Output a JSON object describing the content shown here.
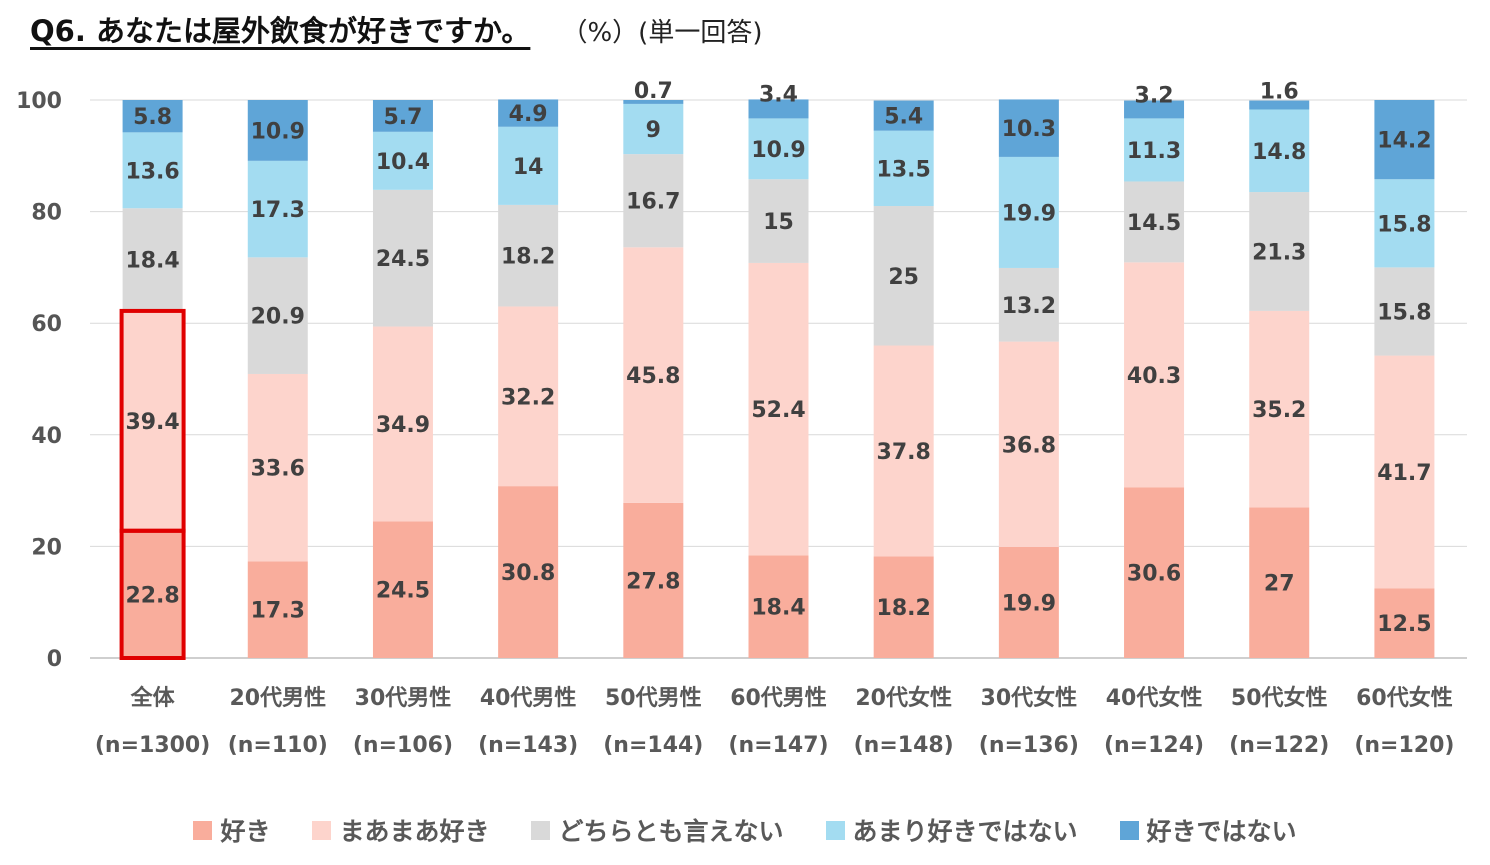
{
  "title": "Q6. あなたは屋外飲食が好きですか。",
  "title_note": "（%）(単一回答)",
  "chart_data": {
    "type": "bar",
    "stacked": true,
    "orientation": "vertical",
    "ylim": [
      0,
      100
    ],
    "yticks": [
      "0",
      "20",
      "40",
      "60",
      "80",
      "100"
    ],
    "grid": true,
    "categories": [
      "全体",
      "20代男性",
      "30代男性",
      "40代男性",
      "50代男性",
      "60代男性",
      "20代女性",
      "30代女性",
      "40代女性",
      "50代女性",
      "60代女性"
    ],
    "sample_sizes": [
      "(n=1300)",
      "(n=110)",
      "(n=106)",
      "(n=143)",
      "(n=144)",
      "(n=147)",
      "(n=148)",
      "(n=136)",
      "(n=124)",
      "(n=122)",
      "(n=120)"
    ],
    "series": [
      {
        "name": "好き",
        "color": "#f9ad9c",
        "values": [
          22.8,
          17.3,
          24.5,
          30.8,
          27.8,
          18.4,
          18.2,
          19.9,
          30.6,
          27,
          12.5
        ],
        "labels": [
          "22.8",
          "17.3",
          "24.5",
          "30.8",
          "27.8",
          "18.4",
          "18.2",
          "19.9",
          "30.6",
          "27",
          "12.5"
        ]
      },
      {
        "name": "まあまあ好き",
        "color": "#fdd4cc",
        "values": [
          39.4,
          33.6,
          34.9,
          32.2,
          45.8,
          52.4,
          37.8,
          36.8,
          40.3,
          35.2,
          41.7
        ],
        "labels": [
          "39.4",
          "33.6",
          "34.9",
          "32.2",
          "45.8",
          "52.4",
          "37.8",
          "36.8",
          "40.3",
          "35.2",
          "41.7"
        ]
      },
      {
        "name": "どちらとも言えない",
        "color": "#d9d9d9",
        "values": [
          18.4,
          20.9,
          24.5,
          18.2,
          16.7,
          15,
          25,
          13.2,
          14.5,
          21.3,
          15.8
        ],
        "labels": [
          "18.4",
          "20.9",
          "24.5",
          "18.2",
          "16.7",
          "15",
          "25",
          "13.2",
          "14.5",
          "21.3",
          "15.8"
        ]
      },
      {
        "name": "あまり好きではない",
        "color": "#a3dcf1",
        "values": [
          13.6,
          17.3,
          10.4,
          14,
          9,
          10.9,
          13.5,
          19.9,
          11.3,
          14.8,
          15.8
        ],
        "labels": [
          "13.6",
          "17.3",
          "10.4",
          "14",
          "9",
          "10.9",
          "13.5",
          "19.9",
          "11.3",
          "14.8",
          "15.8"
        ]
      },
      {
        "name": "好きではない",
        "color": "#5fa5d7",
        "values": [
          5.8,
          10.9,
          5.7,
          4.9,
          0.7,
          3.4,
          5.4,
          10.3,
          3.2,
          1.6,
          14.2
        ],
        "labels": [
          "5.8",
          "10.9",
          "5.7",
          "4.9",
          "0.7",
          "3.4",
          "5.4",
          "10.3",
          "3.2",
          "1.6",
          "14.2"
        ]
      }
    ],
    "highlight": {
      "category": "全体",
      "series": [
        "好き",
        "まあまあ好き"
      ],
      "color": "#e00000"
    },
    "legend_position": "bottom"
  }
}
